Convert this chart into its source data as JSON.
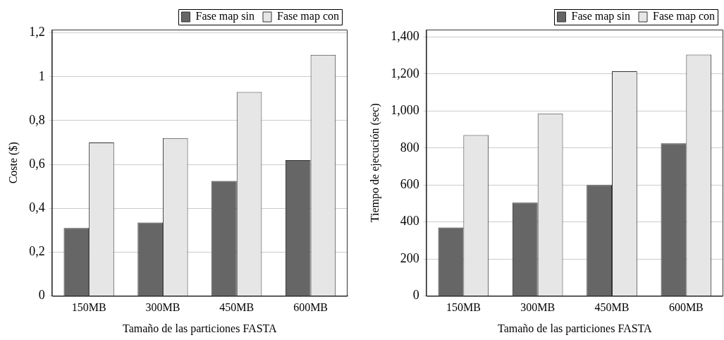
{
  "chart_data": [
    {
      "type": "bar",
      "categories": [
        "150MB",
        "300MB",
        "450MB",
        "600MB"
      ],
      "xlabel": "Tamaño de las particiones FASTA",
      "ylabel": "Coste ($)",
      "series": [
        {
          "name": "Fase map sin",
          "color": "#666666",
          "values": [
            0.31,
            0.335,
            0.525,
            0.62
          ]
        },
        {
          "name": "Fase map con",
          "color": "#e6e6e6",
          "values": [
            0.7,
            0.72,
            0.93,
            1.1
          ]
        }
      ],
      "ylim": [
        0,
        1.215
      ],
      "yticks": [
        0,
        {
          "value": 0.2,
          "label": "0,2"
        },
        {
          "value": 0.4,
          "label": "0,4"
        },
        {
          "value": 0.6,
          "label": "0,6"
        },
        {
          "value": 0.8,
          "label": "0,8"
        },
        1,
        {
          "value": 1.2,
          "label": "1,2"
        }
      ],
      "grid": "y",
      "legend": "top right"
    },
    {
      "type": "bar",
      "categories": [
        "150MB",
        "300MB",
        "450MB",
        "600MB"
      ],
      "xlabel": "Tamaño de las particiones FASTA",
      "ylabel": "Tiempo de ejecución (sec)",
      "series": [
        {
          "name": "Fase map sin",
          "color": "#666666",
          "values": [
            370,
            505,
            600,
            825
          ]
        },
        {
          "name": "Fase map con",
          "color": "#e6e6e6",
          "values": [
            870,
            985,
            1215,
            1305
          ]
        }
      ],
      "ylim": [
        0,
        1440
      ],
      "yticks": [
        0,
        200,
        400,
        600,
        800,
        {
          "value": 1000,
          "label": "1,000"
        },
        {
          "value": 1200,
          "label": "1,200"
        },
        {
          "value": 1400,
          "label": "1,400"
        }
      ],
      "grid": "y",
      "legend": "top right"
    }
  ]
}
